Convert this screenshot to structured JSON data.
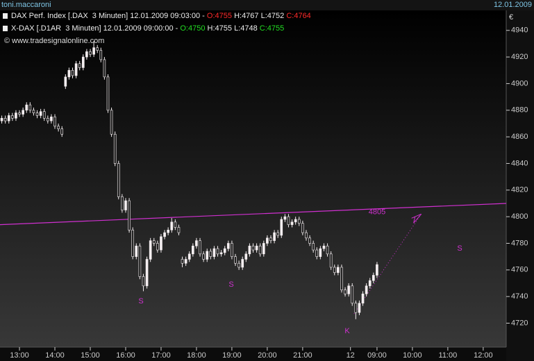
{
  "header": {
    "user": "toni.maccaroni",
    "date": "12.01.2009"
  },
  "chart_data": {
    "type": "candlestick",
    "currency": "€",
    "copyright": "© www.tradesignalonline.com",
    "legend": [
      {
        "name": "DAX Perf. Index [.DAX  3 Minuten] 12.01.2009 09:03:00 -",
        "o": "O:4755",
        "h": "H:4767",
        "l": "L:4752",
        "c": "C:4764",
        "oc_color": "#ff2a2a"
      },
      {
        "name": "X-DAX [.D1AR  3 Minuten] 12.01.2009 09:00:00 -",
        "o": "O:4750",
        "h": "H:4755",
        "l": "L:4748",
        "c": "C:4755",
        "oc_color": "#22dd22"
      }
    ],
    "up_color": "#f4eef0",
    "down_color": "#222222",
    "ohlc": [
      [
        4872,
        4876,
        4870,
        4874
      ],
      [
        4874,
        4876,
        4870,
        4872
      ],
      [
        4872,
        4878,
        4870,
        4876
      ],
      [
        4876,
        4878,
        4872,
        4874
      ],
      [
        4874,
        4880,
        4872,
        4878
      ],
      [
        4878,
        4880,
        4875,
        4877
      ],
      [
        4877,
        4882,
        4875,
        4880
      ],
      [
        4880,
        4886,
        4878,
        4884
      ],
      [
        4884,
        4886,
        4878,
        4880
      ],
      [
        4880,
        4882,
        4876,
        4878
      ],
      [
        4878,
        4880,
        4874,
        4876
      ],
      [
        4876,
        4881,
        4874,
        4879
      ],
      [
        4879,
        4881,
        4872,
        4874
      ],
      [
        4874,
        4876,
        4870,
        4872
      ],
      [
        4872,
        4877,
        4870,
        4875
      ],
      [
        4875,
        4877,
        4866,
        4868
      ],
      [
        4868,
        4870,
        4864,
        4866
      ],
      [
        4866,
        4868,
        4860,
        4862
      ],
      [
        4898,
        4907,
        4896,
        4905
      ],
      [
        4905,
        4912,
        4903,
        4910
      ],
      [
        4910,
        4912,
        4904,
        4906
      ],
      [
        4906,
        4917,
        4904,
        4915
      ],
      [
        4915,
        4917,
        4910,
        4912
      ],
      [
        4912,
        4922,
        4910,
        4920
      ],
      [
        4920,
        4926,
        4918,
        4924
      ],
      [
        4924,
        4926,
        4920,
        4922
      ],
      [
        4922,
        4932,
        4920,
        4927
      ],
      [
        4927,
        4929,
        4923,
        4925
      ],
      [
        4925,
        4927,
        4916,
        4918
      ],
      [
        4918,
        4920,
        4903,
        4905
      ],
      [
        4905,
        4907,
        4878,
        4880
      ],
      [
        4880,
        4882,
        4860,
        4862
      ],
      [
        4862,
        4864,
        4838,
        4840
      ],
      [
        4840,
        4842,
        4813,
        4815
      ],
      [
        4815,
        4817,
        4803,
        4805
      ],
      [
        4805,
        4814,
        4803,
        4812
      ],
      [
        4812,
        4814,
        4788,
        4790
      ],
      [
        4790,
        4792,
        4768,
        4770
      ],
      [
        4770,
        4780,
        4768,
        4778
      ],
      [
        4778,
        4780,
        4753,
        4755
      ],
      [
        4755,
        4757,
        4744,
        4748
      ],
      [
        4748,
        4770,
        4746,
        4768
      ],
      [
        4768,
        4784,
        4766,
        4782
      ],
      [
        4782,
        4784,
        4778,
        4780
      ],
      [
        4780,
        4782,
        4773,
        4775
      ],
      [
        4775,
        4787,
        4773,
        4785
      ],
      [
        4785,
        4790,
        4783,
        4788
      ],
      [
        4788,
        4792,
        4786,
        4790
      ],
      [
        4790,
        4799,
        4788,
        4796
      ],
      [
        4796,
        4798,
        4790,
        4792
      ],
      [
        4792,
        4794,
        4786,
        4788
      ],
      [
        4768,
        4770,
        4762,
        4765
      ],
      [
        4765,
        4770,
        4763,
        4768
      ],
      [
        4768,
        4774,
        4766,
        4772
      ],
      [
        4772,
        4780,
        4770,
        4778
      ],
      [
        4778,
        4784,
        4776,
        4782
      ],
      [
        4782,
        4784,
        4770,
        4772
      ],
      [
        4772,
        4774,
        4766,
        4768
      ],
      [
        4768,
        4776,
        4766,
        4774
      ],
      [
        4774,
        4776,
        4768,
        4770
      ],
      [
        4770,
        4778,
        4768,
        4776
      ],
      [
        4776,
        4778,
        4770,
        4772
      ],
      [
        4772,
        4775,
        4770,
        4773
      ],
      [
        4773,
        4778,
        4771,
        4776
      ],
      [
        4776,
        4782,
        4774,
        4780
      ],
      [
        4780,
        4782,
        4768,
        4770
      ],
      [
        4770,
        4772,
        4763,
        4765
      ],
      [
        4765,
        4767,
        4760,
        4762
      ],
      [
        4762,
        4770,
        4760,
        4768
      ],
      [
        4768,
        4774,
        4766,
        4772
      ],
      [
        4772,
        4780,
        4770,
        4778
      ],
      [
        4778,
        4780,
        4773,
        4775
      ],
      [
        4775,
        4780,
        4773,
        4778
      ],
      [
        4778,
        4780,
        4770,
        4772
      ],
      [
        4772,
        4782,
        4770,
        4780
      ],
      [
        4780,
        4786,
        4778,
        4784
      ],
      [
        4784,
        4786,
        4780,
        4782
      ],
      [
        4782,
        4790,
        4780,
        4788
      ],
      [
        4788,
        4790,
        4784,
        4786
      ],
      [
        4786,
        4800,
        4784,
        4798
      ],
      [
        4798,
        4802,
        4796,
        4800
      ],
      [
        4800,
        4802,
        4792,
        4794
      ],
      [
        4794,
        4798,
        4792,
        4796
      ],
      [
        4796,
        4800,
        4794,
        4798
      ],
      [
        4798,
        4800,
        4793,
        4795
      ],
      [
        4795,
        4797,
        4786,
        4788
      ],
      [
        4788,
        4790,
        4782,
        4784
      ],
      [
        4784,
        4786,
        4778,
        4780
      ],
      [
        4780,
        4782,
        4773,
        4775
      ],
      [
        4775,
        4777,
        4768,
        4770
      ],
      [
        4770,
        4778,
        4768,
        4776
      ],
      [
        4776,
        4780,
        4774,
        4778
      ],
      [
        4778,
        4780,
        4770,
        4772
      ],
      [
        4772,
        4774,
        4760,
        4762
      ],
      [
        4762,
        4764,
        4756,
        4758
      ],
      [
        4758,
        4764,
        4756,
        4762
      ],
      [
        4762,
        4764,
        4743,
        4745
      ],
      [
        4745,
        4747,
        4740,
        4742
      ],
      [
        4742,
        4750,
        4740,
        4748
      ],
      [
        4748,
        4750,
        4733,
        4735
      ],
      [
        4735,
        4737,
        4723,
        4728
      ],
      [
        4728,
        4737,
        4726,
        4735
      ],
      [
        4735,
        4744,
        4733,
        4742
      ],
      [
        4742,
        4750,
        4740,
        4748
      ],
      [
        4748,
        4754,
        4746,
        4752
      ],
      [
        4752,
        4758,
        4750,
        4756
      ],
      [
        4756,
        4766,
        4754,
        4764
      ]
    ],
    "xlim": [
      0,
      143
    ],
    "ylim": [
      4702,
      4955
    ],
    "yticks": [
      4720,
      4740,
      4760,
      4780,
      4800,
      4820,
      4840,
      4860,
      4880,
      4900,
      4920,
      4940
    ],
    "xticks": [
      {
        "value": 5.5,
        "label": "13:00"
      },
      {
        "value": 15.5,
        "label": "14:00"
      },
      {
        "value": 25.5,
        "label": "15:00"
      },
      {
        "value": 35.5,
        "label": "16:00"
      },
      {
        "value": 45.5,
        "label": "17:00"
      },
      {
        "value": 55.5,
        "label": "18:00"
      },
      {
        "value": 65.5,
        "label": "19:00"
      },
      {
        "value": 75.5,
        "label": "20:00"
      },
      {
        "value": 85.5,
        "label": "21:00"
      },
      {
        "value": 99,
        "label": "12"
      },
      {
        "value": 106.5,
        "label": "09:00"
      },
      {
        "value": 116.5,
        "label": "10:00"
      },
      {
        "value": 126.5,
        "label": "11:00"
      },
      {
        "value": 136.5,
        "label": "12:00"
      }
    ],
    "trendline": {
      "x": [
        0,
        143
      ],
      "y": [
        4794,
        4810
      ],
      "label": 4805,
      "color": "#d030d0"
    },
    "projection": {
      "x": [
        100,
        119
      ],
      "y": [
        4727,
        4802
      ],
      "color": "#d030d0"
    },
    "annotations": [
      {
        "text": "S"
      },
      {
        "text": "S"
      },
      {
        "text": "S"
      },
      {
        "text": "K"
      }
    ]
  }
}
